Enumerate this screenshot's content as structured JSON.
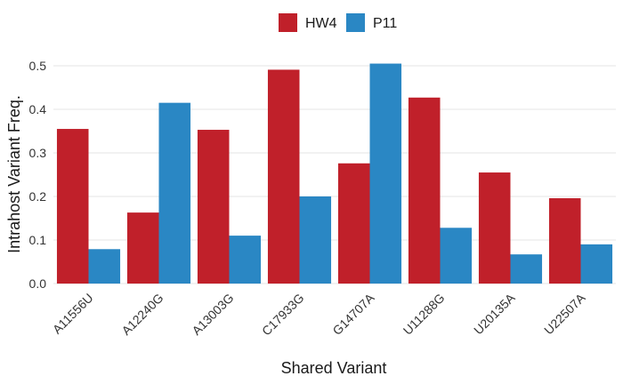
{
  "chart_data": {
    "type": "bar",
    "title": "",
    "xlabel": "Shared Variant",
    "ylabel": "Intrahost Variant Freq.",
    "categories": [
      "A11556U",
      "A12240G",
      "A13003G",
      "C17933G",
      "G14707A",
      "U11288G",
      "U20135A",
      "U22507A"
    ],
    "series": [
      {
        "name": "HW4",
        "color": "#c0202a",
        "values": [
          0.355,
          0.163,
          0.353,
          0.491,
          0.276,
          0.427,
          0.255,
          0.196
        ]
      },
      {
        "name": "P11",
        "color": "#2a87c4",
        "values": [
          0.079,
          0.415,
          0.11,
          0.2,
          0.505,
          0.128,
          0.067,
          0.09
        ]
      }
    ],
    "ylim": [
      0,
      0.5
    ],
    "yticks": [
      0.0,
      0.1,
      0.2,
      0.3,
      0.4,
      0.5
    ],
    "ytick_labels": [
      "0.0",
      "0.1",
      "0.2",
      "0.3",
      "0.4",
      "0.5"
    ],
    "legend_position": "top",
    "grid": "horizontal"
  }
}
